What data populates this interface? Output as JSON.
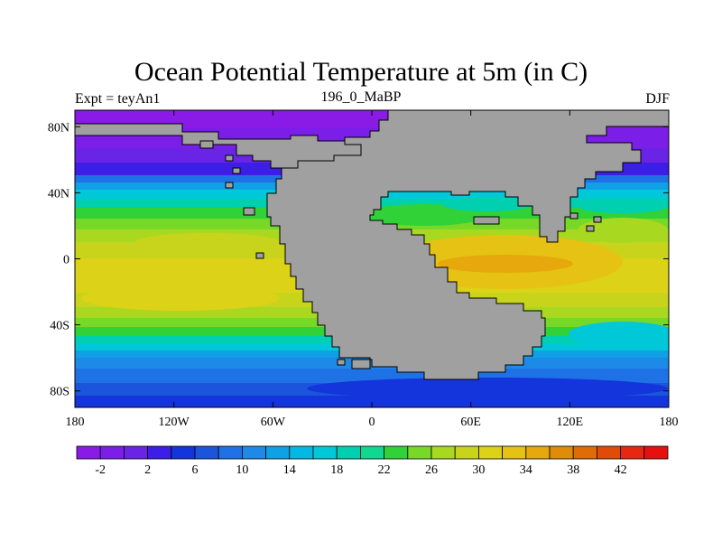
{
  "title": "Ocean Potential Temperature at 5m (in C)",
  "subtitle_left": "Expt = teyAn1",
  "subtitle_center": "196_0_MaBP",
  "subtitle_right": "DJF",
  "x_ticks": [
    {
      "value": -180,
      "label": "180"
    },
    {
      "value": -120,
      "label": "120W"
    },
    {
      "value": -60,
      "label": "60W"
    },
    {
      "value": 0,
      "label": "0"
    },
    {
      "value": 60,
      "label": "60E"
    },
    {
      "value": 120,
      "label": "120E"
    },
    {
      "value": 180,
      "label": "180"
    }
  ],
  "y_ticks": [
    {
      "value": 80,
      "label": "80N"
    },
    {
      "value": 40,
      "label": "40N"
    },
    {
      "value": 0,
      "label": "0"
    },
    {
      "value": -40,
      "label": "40S"
    },
    {
      "value": -80,
      "label": "80S"
    }
  ],
  "lon_range": [
    -180,
    180
  ],
  "lat_range": [
    -90,
    90
  ],
  "land_color": "#a0a0a0",
  "colorbar": {
    "colors": [
      "#8a1ae6",
      "#7b1ee8",
      "#6a24e6",
      "#3c1ee6",
      "#1434dc",
      "#1a55dc",
      "#1e72e6",
      "#1c8ae6",
      "#10a0e6",
      "#04b8e6",
      "#00c8d8",
      "#00d0b0",
      "#10d890",
      "#30d238",
      "#78d828",
      "#a8d820",
      "#c8d41c",
      "#dcd218",
      "#e6c214",
      "#e6a80c",
      "#e08c08",
      "#e06c08",
      "#e04c08",
      "#e62810",
      "#e61010"
    ],
    "labels": [
      "-2",
      "2",
      "6",
      "10",
      "14",
      "18",
      "22",
      "26",
      "30",
      "34",
      "38",
      "42"
    ]
  }
}
